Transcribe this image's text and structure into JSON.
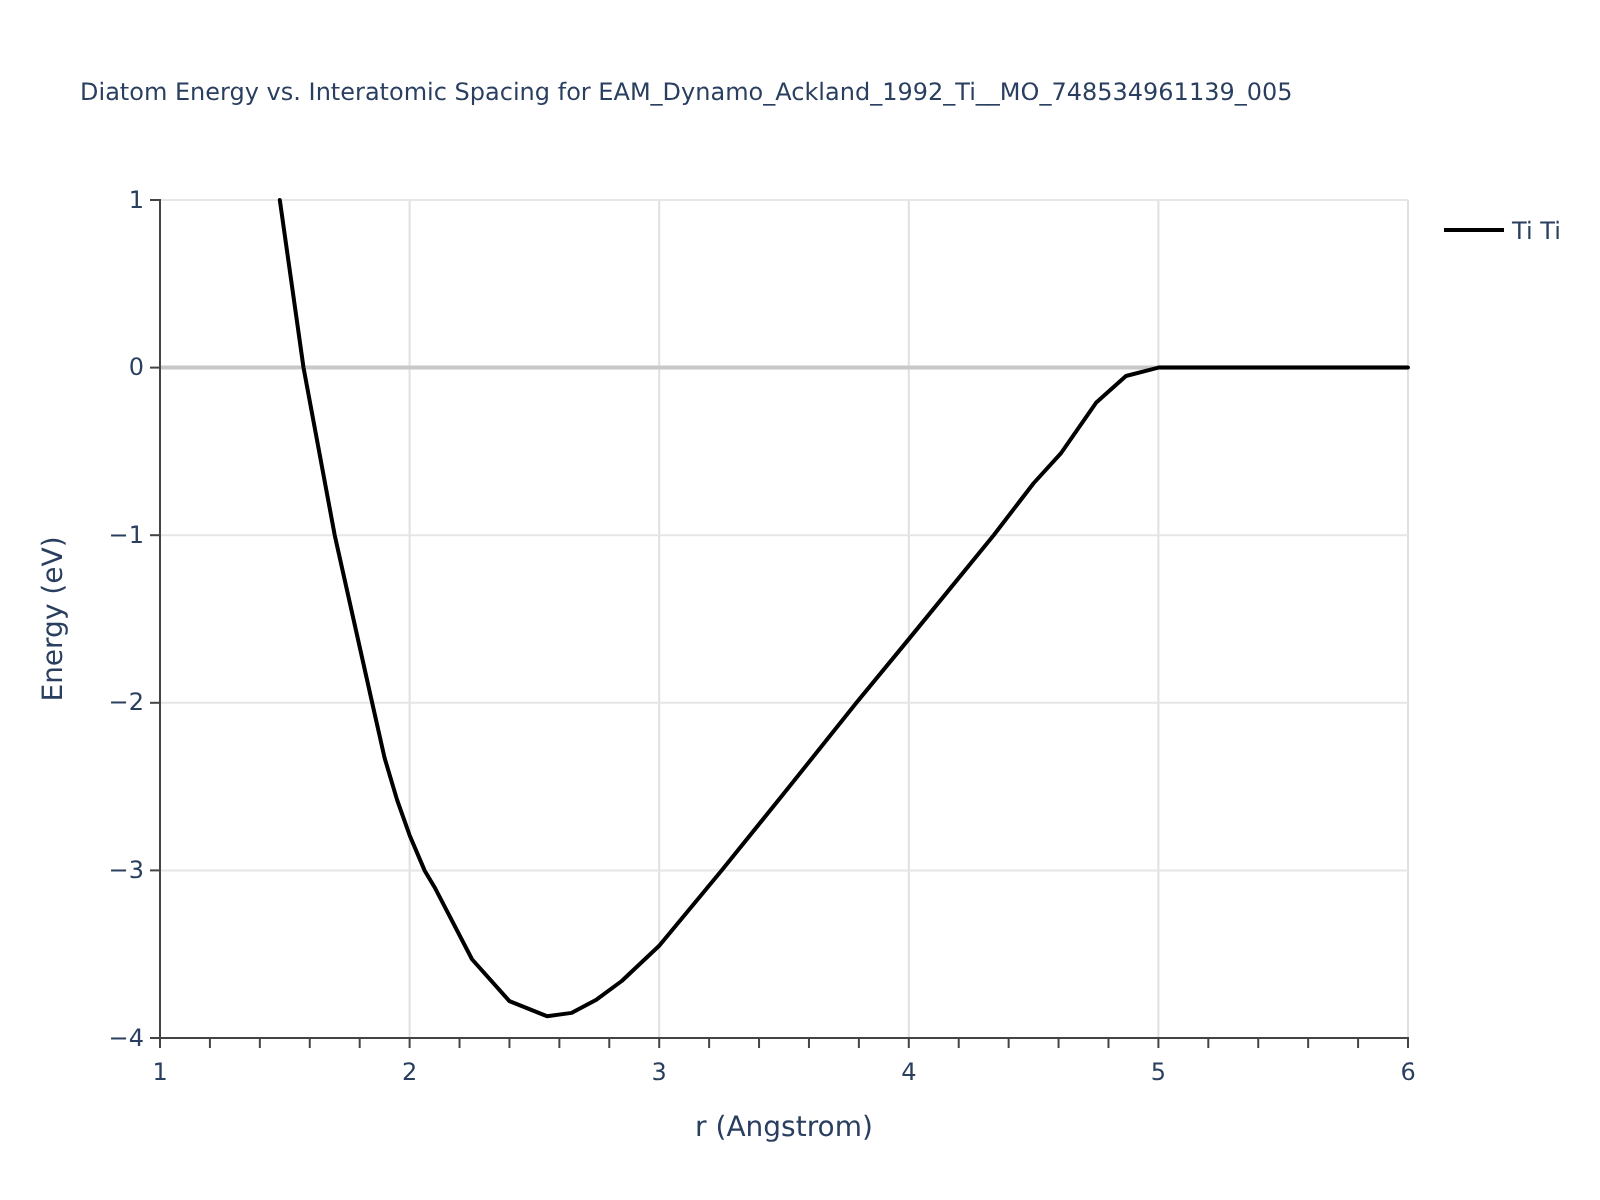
{
  "chart_data": {
    "type": "line",
    "title": "Diatom Energy vs. Interatomic Spacing for EAM_Dynamo_Ackland_1992_Ti__MO_748534961139_005",
    "xlabel": "r (Angstrom)",
    "ylabel": "Energy (eV)",
    "xlim": [
      1,
      6
    ],
    "ylim": [
      -4,
      1
    ],
    "xticks": [
      1,
      {
        "value": 1.2,
        "label": null
      },
      {
        "value": 1.4,
        "label": null
      },
      {
        "value": 1.6,
        "label": null
      },
      {
        "value": 1.8,
        "label": null
      },
      2,
      {
        "value": 2.2,
        "label": null
      },
      {
        "value": 2.4,
        "label": null
      },
      {
        "value": 2.6,
        "label": null
      },
      {
        "value": 2.8,
        "label": null
      },
      3,
      {
        "value": 3.2,
        "label": null
      },
      {
        "value": 3.4,
        "label": null
      },
      {
        "value": 3.6,
        "label": null
      },
      {
        "value": 3.8,
        "label": null
      },
      4,
      {
        "value": 4.2,
        "label": null
      },
      {
        "value": 4.4,
        "label": null
      },
      {
        "value": 4.6,
        "label": null
      },
      {
        "value": 4.8,
        "label": null
      },
      5,
      {
        "value": 5.2,
        "label": null
      },
      {
        "value": 5.4,
        "label": null
      },
      {
        "value": 5.6,
        "label": null
      },
      {
        "value": 5.8,
        "label": null
      },
      6
    ],
    "yticks": [
      {
        "value": -4,
        "label": "−4"
      },
      {
        "value": -3,
        "label": "−3"
      },
      {
        "value": -2,
        "label": "−2"
      },
      {
        "value": -1,
        "label": "−1"
      },
      0,
      1
    ],
    "grid": true,
    "legend": "top right",
    "line_style": "solid",
    "marker": "none",
    "series": [
      {
        "name": "Ti Ti",
        "color": "#000000",
        "x": [
          1.48,
          1.575,
          1.7,
          1.85,
          1.9,
          1.95,
          2,
          2.06,
          2.1,
          2.25,
          2.4,
          2.55,
          2.65,
          2.75,
          2.85,
          3,
          3.25,
          3.5,
          3.79,
          4,
          4.34,
          4.5,
          4.61,
          4.75,
          4.87,
          5,
          5.5,
          6
        ],
        "values": [
          1,
          0,
          -1,
          -2,
          -2.33,
          -2.58,
          -2.79,
          -3,
          -3.1,
          -3.53,
          -3.78,
          -3.87,
          -3.85,
          -3.77,
          -3.66,
          -3.45,
          -3,
          -2.54,
          -2,
          -1.62,
          -1,
          -0.69,
          -0.51,
          -0.21,
          -0.05,
          0,
          0,
          0
        ]
      }
    ]
  }
}
